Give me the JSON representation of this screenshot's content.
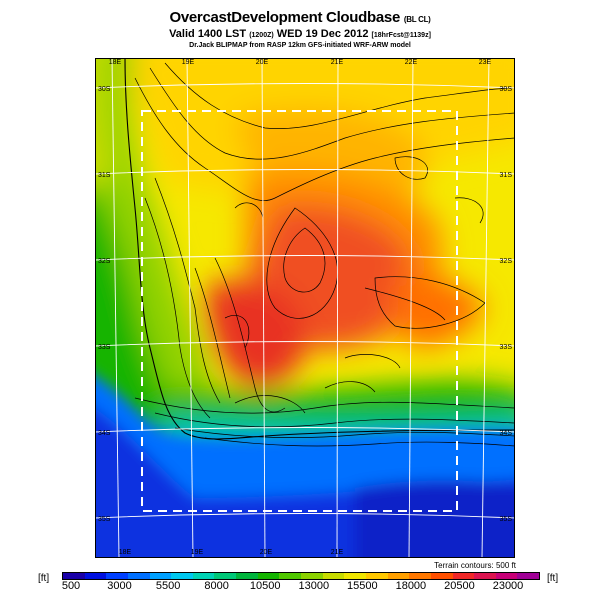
{
  "header": {
    "title": "OvercastDevelopment Cloudbase",
    "title_suffix": "(BL CL)",
    "subtitle_prefix": "Valid 1400 LST",
    "subtitle_code": "(1200Z)",
    "subtitle_date": "WED 19 Dec 2012",
    "subtitle_suffix": "[18hrFcst@1139z]",
    "source_line": "Dr.Jack BLIPMAP from RASP 12km GFS-initiated WRF-ARW model"
  },
  "map": {
    "longitude_labels_top": [
      "18E",
      "19E",
      "20E",
      "21E",
      "22E",
      "23E"
    ],
    "longitude_labels_bottom": [
      "18E",
      "19E",
      "20E",
      "21E"
    ],
    "latitude_labels_left": [
      "30S",
      "31S",
      "32S",
      "33S",
      "34S",
      "35S"
    ],
    "latitude_labels_right": [
      "30S",
      "31S",
      "32S",
      "33S",
      "34S",
      "35S"
    ],
    "contour_note": "Terrain contours: 500 ft"
  },
  "colorbar": {
    "unit_left": "[ft]",
    "unit_right": "[ft]",
    "tick_labels": [
      "500",
      "3000",
      "5500",
      "8000",
      "10500",
      "13000",
      "15500",
      "18000",
      "20500",
      "23000"
    ],
    "colors": [
      "#1a00a8",
      "#0010e0",
      "#0040ff",
      "#0070ff",
      "#00a0ff",
      "#00c8f0",
      "#00d2b4",
      "#00c878",
      "#00b43c",
      "#14b400",
      "#50c800",
      "#8cd200",
      "#c8dc00",
      "#f0e600",
      "#ffc800",
      "#ffa000",
      "#ff7800",
      "#ff5000",
      "#f02828",
      "#dc1450",
      "#c80078",
      "#a00096"
    ]
  },
  "colors": {
    "deep_blue": "#0a30e0",
    "sea_blue": "#0078ff",
    "green": "#14b400",
    "yellow": "#f0e600",
    "orange": "#ffa000",
    "red": "#e83020"
  }
}
